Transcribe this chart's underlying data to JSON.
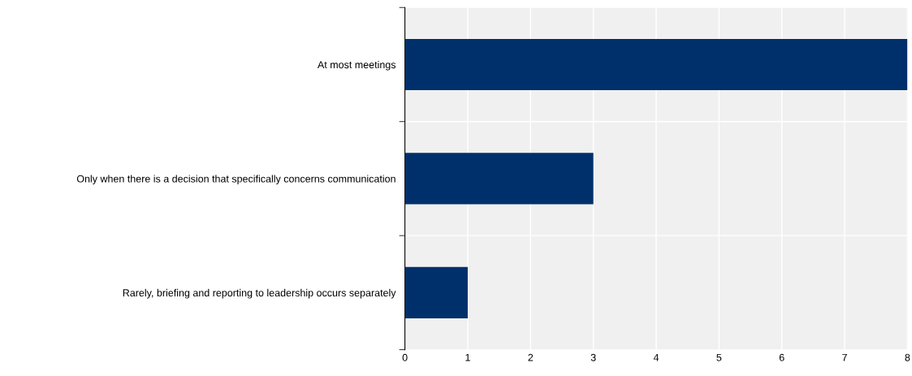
{
  "chart_data": {
    "type": "bar",
    "orientation": "horizontal",
    "categories": [
      "At most meetings",
      "Only when there is a decision that specifically concerns communication",
      "Rarely, briefing and reporting to leadership occurs separately"
    ],
    "values": [
      8,
      3,
      1
    ],
    "color": "#00306b",
    "xlim": [
      0,
      8
    ],
    "xticks": [
      0,
      1,
      2,
      3,
      4,
      5,
      6,
      7,
      8
    ],
    "grid": true,
    "legend": false
  }
}
